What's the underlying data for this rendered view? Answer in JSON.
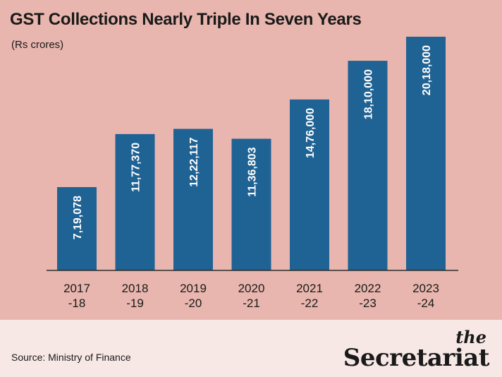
{
  "chart_data": {
    "type": "bar",
    "title": "GST Collections Nearly Triple In Seven Years",
    "subtitle": "(Rs crores)",
    "categories": [
      [
        "2017",
        "-18"
      ],
      [
        "2018",
        "-19"
      ],
      [
        "2019",
        "-20"
      ],
      [
        "2020",
        "-21"
      ],
      [
        "2021",
        "-22"
      ],
      [
        "2022",
        "-23"
      ],
      [
        "2023",
        "-24"
      ]
    ],
    "values": [
      719078,
      1177370,
      1222117,
      1136803,
      1476000,
      1810000,
      2018000
    ],
    "value_labels": [
      "7,19,078",
      "11,77,370",
      "12,22,117",
      "11,36,803",
      "14,76,000",
      "18,10,000",
      "20,18,000"
    ],
    "ylim": [
      0,
      2018000
    ],
    "bar_color": "#1f6294",
    "grid": false
  },
  "footer": {
    "source": "Source: Ministry of Finance",
    "logo_the": "the",
    "logo_name": "Secretariat"
  },
  "colors": {
    "background": "#e8b6ae",
    "footer_background": "#f7e8e6"
  }
}
